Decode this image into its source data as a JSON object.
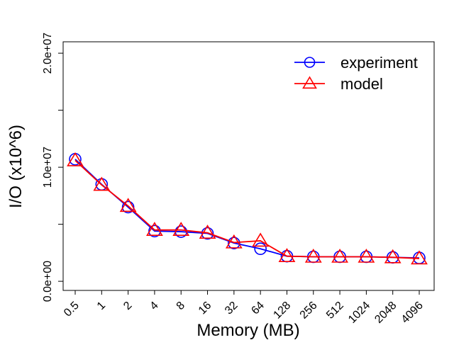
{
  "chart_data": {
    "type": "line",
    "title": "",
    "xlabel": "Memory (MB)",
    "ylabel": "I/O (x10^6)",
    "categories": [
      "0.5",
      "1",
      "2",
      "4",
      "8",
      "16",
      "32",
      "64",
      "128",
      "256",
      "512",
      "1024",
      "2048",
      "4096"
    ],
    "ylim": [
      -800000,
      21000000
    ],
    "y_ticks": [
      0,
      5000000,
      10000000,
      15000000,
      20000000
    ],
    "y_tick_labels": [
      "0.0e+00",
      "",
      "1.0e+07",
      "",
      "2.0e+07"
    ],
    "grid": false,
    "legend_position": "top-right",
    "series": [
      {
        "name": "experiment",
        "color": "#0000ff",
        "marker": "circle",
        "values": [
          10700000,
          8500000,
          6500000,
          4400000,
          4350000,
          4200000,
          3350000,
          2850000,
          2200000,
          2150000,
          2150000,
          2150000,
          2100000,
          2050000
        ]
      },
      {
        "name": "model",
        "color": "#ff0000",
        "marker": "triangle",
        "values": [
          10600000,
          8450000,
          6600000,
          4500000,
          4500000,
          4250000,
          3400000,
          3550000,
          2200000,
          2150000,
          2150000,
          2150000,
          2100000,
          2000000
        ]
      }
    ]
  }
}
